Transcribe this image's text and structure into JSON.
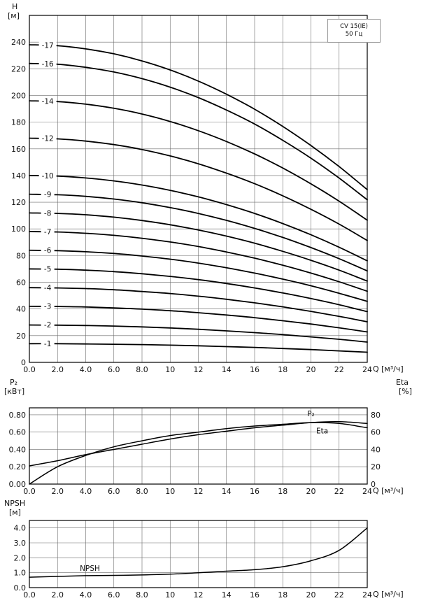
{
  "annotation": {
    "line1": "CV 15(IE)",
    "line2": "50 Гц"
  },
  "labels": {
    "head_axis_1": "H",
    "head_axis_2": "[м]",
    "p2_axis_1": "P₂",
    "p2_axis_2": "[кВт]",
    "eta_axis_1": "Eta",
    "eta_axis_2": "[%]",
    "npsh_axis_1": "NPSH",
    "npsh_axis_2": "[м]",
    "q_label": "Q [м³/ч]"
  },
  "chart_data": [
    {
      "type": "line",
      "title": "CV 15(IE) 50 Гц",
      "xlabel": "Q [м³/ч]",
      "ylabel": "H [м]",
      "grid": true,
      "x": [
        0,
        2,
        4,
        6,
        8,
        10,
        12,
        14,
        16,
        18,
        20,
        22,
        24
      ],
      "xlim": [
        0,
        24
      ],
      "ylim": [
        0,
        260
      ],
      "x_ticks": [
        "0.0",
        "2.0",
        "4.0",
        "6.0",
        "8.0",
        "10",
        "12",
        "14",
        "16",
        "18",
        "20",
        "22",
        "24"
      ],
      "y_tick_values": [
        0,
        20,
        40,
        60,
        80,
        100,
        120,
        140,
        160,
        180,
        200,
        220,
        240
      ],
      "y_ticks": [
        "0",
        "20",
        "40",
        "60",
        "80",
        "100",
        "120",
        "140",
        "160",
        "180",
        "200",
        "220",
        "240"
      ],
      "series": [
        {
          "name": "-17",
          "values": [
            238.0,
            237.3,
            234.9,
            231.2,
            225.9,
            219.1,
            210.8,
            200.9,
            189.7,
            176.8,
            162.5,
            146.7,
            129.4
          ]
        },
        {
          "name": "-16",
          "values": [
            224.0,
            223.4,
            221.1,
            217.6,
            212.6,
            206.2,
            198.4,
            189.1,
            178.6,
            166.4,
            153.0,
            138.1,
            121.8
          ]
        },
        {
          "name": "-14",
          "values": [
            196.0,
            195.4,
            193.5,
            190.4,
            186.1,
            180.5,
            173.6,
            165.5,
            156.2,
            145.6,
            133.8,
            120.8,
            106.5
          ]
        },
        {
          "name": "-12",
          "values": [
            168.0,
            167.5,
            165.8,
            163.2,
            159.5,
            154.7,
            148.8,
            141.8,
            133.9,
            124.8,
            114.7,
            103.6,
            91.3
          ]
        },
        {
          "name": "-10",
          "values": [
            140.0,
            139.6,
            138.2,
            136.0,
            132.9,
            128.9,
            124.0,
            118.2,
            111.6,
            104.0,
            95.6,
            86.3,
            76.1
          ]
        },
        {
          "name": "-9",
          "values": [
            126.0,
            125.6,
            124.4,
            122.4,
            119.6,
            116.0,
            111.6,
            106.4,
            100.4,
            93.6,
            86.0,
            77.7,
            68.5
          ]
        },
        {
          "name": "-8",
          "values": [
            112.0,
            111.6,
            110.6,
            108.8,
            106.3,
            103.1,
            99.2,
            94.6,
            89.3,
            83.2,
            76.5,
            69.1,
            60.9
          ]
        },
        {
          "name": "-7",
          "values": [
            98.0,
            97.7,
            96.7,
            95.2,
            93.0,
            90.2,
            86.8,
            82.7,
            78.1,
            72.8,
            66.9,
            60.4,
            53.3
          ]
        },
        {
          "name": "-6",
          "values": [
            84.0,
            83.7,
            82.9,
            81.6,
            79.7,
            77.3,
            74.4,
            70.9,
            66.9,
            62.4,
            57.4,
            51.8,
            45.7
          ]
        },
        {
          "name": "-5",
          "values": [
            70.0,
            69.8,
            69.1,
            68.0,
            66.4,
            64.4,
            62.0,
            59.1,
            55.8,
            52.0,
            47.8,
            43.2,
            38.0
          ]
        },
        {
          "name": "-4",
          "values": [
            56.0,
            55.8,
            55.3,
            54.4,
            53.1,
            51.6,
            49.6,
            47.3,
            44.6,
            41.6,
            38.2,
            34.5,
            30.4
          ]
        },
        {
          "name": "-3",
          "values": [
            42.0,
            41.9,
            41.5,
            40.8,
            39.9,
            38.7,
            37.2,
            35.5,
            33.5,
            31.2,
            28.7,
            25.9,
            22.8
          ]
        },
        {
          "name": "-2",
          "values": [
            28.0,
            27.9,
            27.6,
            27.2,
            26.6,
            25.8,
            24.8,
            23.6,
            22.3,
            20.8,
            19.1,
            17.3,
            15.2
          ]
        },
        {
          "name": "-1",
          "values": [
            14.0,
            14.0,
            13.8,
            13.6,
            13.3,
            12.9,
            12.4,
            11.8,
            11.2,
            10.4,
            9.6,
            8.6,
            7.6
          ]
        }
      ]
    },
    {
      "type": "line",
      "xlabel": "Q [м³/ч]",
      "ylabel": "P₂ [кВт]",
      "ylabel_right": "Eta [%]",
      "grid": true,
      "x": [
        0,
        2,
        4,
        6,
        8,
        10,
        12,
        14,
        16,
        18,
        20,
        22,
        24
      ],
      "xlim": [
        0,
        24
      ],
      "ylim": [
        0,
        0.88
      ],
      "ylim_right": [
        0,
        88
      ],
      "x_ticks": [
        "0.0",
        "2.0",
        "4.0",
        "6.0",
        "8.0",
        "10",
        "12",
        "14",
        "16",
        "18",
        "20",
        "22",
        "24"
      ],
      "y_tick_values": [
        0,
        0.2,
        0.4,
        0.6,
        0.8
      ],
      "y_ticks": [
        "0.00",
        "0.20",
        "0.40",
        "0.60",
        "0.80"
      ],
      "y_ticks_right": [
        "0",
        "20",
        "40",
        "60",
        "80"
      ],
      "series": [
        {
          "name": "P₂",
          "axis": "left",
          "values": [
            0.21,
            0.27,
            0.34,
            0.4,
            0.46,
            0.52,
            0.57,
            0.61,
            0.65,
            0.68,
            0.71,
            0.72,
            0.7
          ]
        },
        {
          "name": "Eta",
          "axis": "right",
          "values": [
            0,
            20,
            33,
            43,
            50,
            56,
            60,
            64,
            67,
            69,
            71,
            70,
            65
          ]
        }
      ]
    },
    {
      "type": "line",
      "xlabel": "Q [м³/ч]",
      "ylabel": "NPSH [м]",
      "grid": true,
      "x": [
        0,
        2,
        4,
        6,
        8,
        10,
        12,
        14,
        16,
        18,
        20,
        22,
        24
      ],
      "xlim": [
        0,
        24
      ],
      "ylim": [
        0,
        4.5
      ],
      "x_ticks": [
        "0.0",
        "2.0",
        "4.0",
        "6.0",
        "8.0",
        "10",
        "12",
        "14",
        "16",
        "18",
        "20",
        "22",
        "24"
      ],
      "y_tick_values": [
        0,
        1,
        2,
        3,
        4
      ],
      "y_ticks": [
        "0.0",
        "1.0",
        "2.0",
        "3.0",
        "4.0"
      ],
      "series": [
        {
          "name": "NPSH",
          "axis": "left",
          "values": [
            0.7,
            0.75,
            0.8,
            0.82,
            0.85,
            0.9,
            1.0,
            1.1,
            1.2,
            1.4,
            1.8,
            2.5,
            4.0
          ]
        }
      ]
    }
  ]
}
